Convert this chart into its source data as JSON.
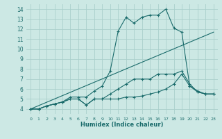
{
  "xlabel": "Humidex (Indice chaleur)",
  "bg_color": "#cce8e4",
  "grid_color": "#aacfcc",
  "line_color": "#1a6b6b",
  "xlim": [
    -0.5,
    23.5
  ],
  "ylim": [
    3.5,
    14.5
  ],
  "xticks": [
    0,
    1,
    2,
    3,
    4,
    5,
    6,
    7,
    8,
    9,
    10,
    11,
    12,
    13,
    14,
    15,
    16,
    17,
    18,
    19,
    20,
    21,
    22,
    23
  ],
  "yticks": [
    4,
    5,
    6,
    7,
    8,
    9,
    10,
    11,
    12,
    13,
    14
  ],
  "series": [
    {
      "x": [
        0,
        1,
        2,
        3,
        4,
        5,
        6,
        7,
        8,
        9,
        10,
        11,
        12,
        13,
        14,
        15,
        16,
        17,
        18,
        19,
        20,
        21,
        22,
        23
      ],
      "y": [
        4.0,
        4.0,
        4.3,
        4.5,
        4.7,
        5.0,
        5.0,
        4.4,
        5.0,
        5.0,
        5.0,
        5.0,
        5.2,
        5.2,
        5.3,
        5.5,
        5.7,
        6.0,
        6.5,
        7.5,
        6.3,
        5.7,
        5.5,
        5.5
      ],
      "marker": true
    },
    {
      "x": [
        0,
        1,
        2,
        3,
        4,
        5,
        6,
        7,
        8,
        9,
        10,
        11,
        12,
        13,
        14,
        15,
        16,
        17,
        18,
        19,
        20,
        21,
        22,
        23
      ],
      "y": [
        4.0,
        4.0,
        4.3,
        4.5,
        4.7,
        5.2,
        5.2,
        5.2,
        5.8,
        6.3,
        7.8,
        11.8,
        13.2,
        12.6,
        13.2,
        13.4,
        13.4,
        14.0,
        12.1,
        11.7,
        6.3,
        5.8,
        5.5,
        5.5
      ],
      "marker": true
    },
    {
      "x": [
        0,
        23
      ],
      "y": [
        4.0,
        11.7
      ],
      "marker": false
    },
    {
      "x": [
        0,
        1,
        2,
        3,
        4,
        5,
        6,
        7,
        8,
        9,
        10,
        11,
        12,
        13,
        14,
        15,
        16,
        17,
        18,
        19,
        20,
        21,
        22,
        23
      ],
      "y": [
        4.0,
        4.0,
        4.3,
        4.5,
        4.7,
        5.0,
        5.0,
        4.4,
        5.0,
        5.0,
        5.5,
        6.0,
        6.5,
        7.0,
        7.0,
        7.0,
        7.5,
        7.5,
        7.5,
        7.8,
        6.5,
        5.7,
        5.5,
        5.5
      ],
      "marker": true
    }
  ]
}
